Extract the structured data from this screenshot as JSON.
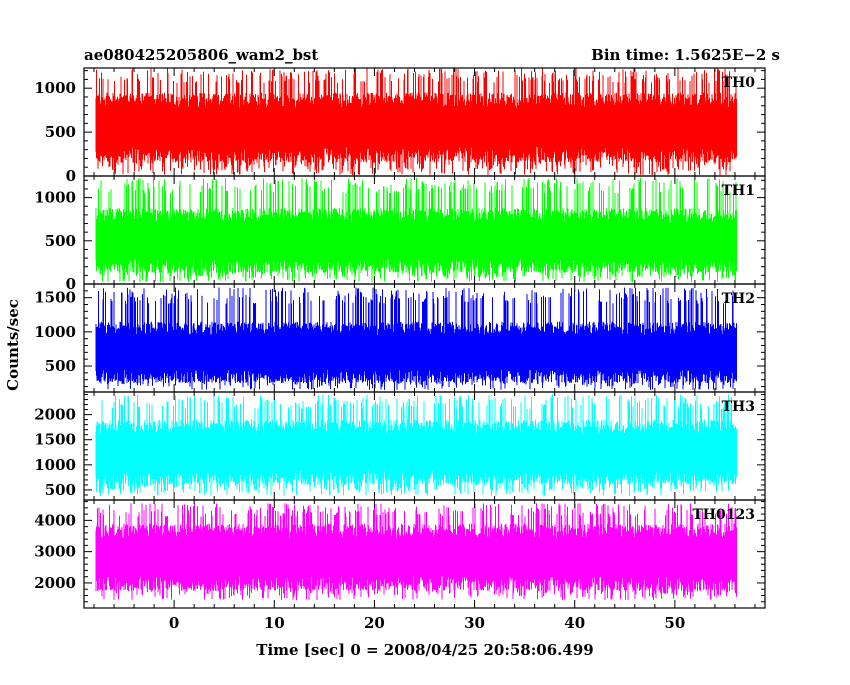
{
  "chart_data": {
    "type": "line",
    "title_left": "ae080425205806_wam2_bst",
    "title_right": "Bin time: 1.5625E−2 s",
    "xlabel": "Time [sec] 0 = 2008/04/25 20:58:06.499",
    "ylabel": "Counts/sec",
    "xlim": [
      -9,
      59
    ],
    "x_ticks": [
      0,
      10,
      20,
      30,
      40,
      50
    ],
    "x_range_data": [
      -7.8,
      56.2
    ],
    "panels": [
      {
        "name": "TH0",
        "color": "#ff0000",
        "ylim": [
          0,
          1230
        ],
        "y_ticks": [
          0,
          500,
          1000
        ],
        "typical_low": 150,
        "typical_high": 950,
        "min": 10,
        "max": 1230
      },
      {
        "name": "TH1",
        "color": "#00ff00",
        "ylim": [
          0,
          1250
        ],
        "y_ticks": [
          0,
          500,
          1000
        ],
        "typical_low": 130,
        "typical_high": 880,
        "min": 20,
        "max": 1230
      },
      {
        "name": "TH2",
        "color": "#0000ff",
        "ylim": [
          120,
          1700
        ],
        "y_ticks": [
          500,
          1000,
          1500
        ],
        "typical_low": 250,
        "typical_high": 1150,
        "min": 150,
        "max": 1650
      },
      {
        "name": "TH3",
        "color": "#00ffff",
        "ylim": [
          300,
          2450
        ],
        "y_ticks": [
          500,
          1000,
          1500,
          2000
        ],
        "typical_low": 600,
        "typical_high": 1900,
        "min": 380,
        "max": 2400
      },
      {
        "name": "TH0123",
        "color": "#ff00ff",
        "ylim": [
          1200,
          4650
        ],
        "y_ticks": [
          2000,
          3000,
          4000
        ],
        "typical_low": 1750,
        "typical_high": 3900,
        "min": 1450,
        "max": 4550
      }
    ],
    "grid": false,
    "legend": "none"
  }
}
